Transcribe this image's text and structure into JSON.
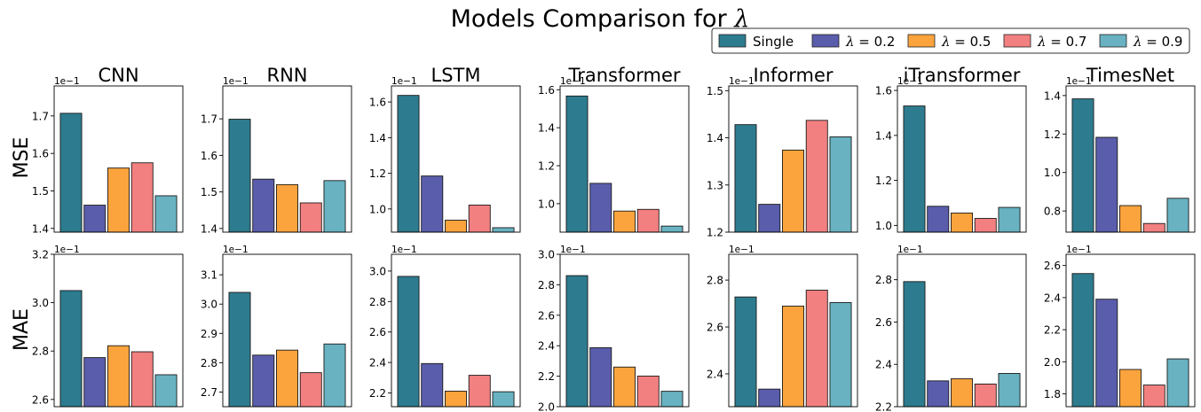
{
  "title_prefix": "Models Comparison for ",
  "title_symbol": "λ",
  "row_labels": [
    "MSE",
    "MAE"
  ],
  "exponent_label": "1e−1",
  "chart_data": {
    "type": "bar",
    "title": "Models Comparison for λ",
    "legend": {
      "placement": "top-right",
      "entries": [
        {
          "label": "Single",
          "color": "#2d7b8e"
        },
        {
          "symbol": "λ",
          "rest": " = 0.2",
          "color": "#5a5dab"
        },
        {
          "symbol": "λ",
          "rest": " = 0.5",
          "color": "#fba43d"
        },
        {
          "symbol": "λ",
          "rest": " = 0.7",
          "color": "#f28080"
        },
        {
          "symbol": "λ",
          "rest": " = 0.9",
          "color": "#68b2c1"
        }
      ]
    },
    "series_names": [
      "Single",
      "λ = 0.2",
      "λ = 0.5",
      "λ = 0.7",
      "λ = 0.9"
    ],
    "panels": [
      {
        "model": "CNN",
        "metric": "MSE",
        "ylim": [
          1.39,
          1.78
        ],
        "ticks": [
          1.4,
          1.5,
          1.6,
          1.7
        ],
        "tick_labels": [
          "1.4",
          "1.5",
          "1.6",
          "1.7"
        ],
        "values": [
          1.707,
          1.462,
          1.561,
          1.575,
          1.487
        ]
      },
      {
        "model": "RNN",
        "metric": "MSE",
        "ylim": [
          1.39,
          1.79
        ],
        "ticks": [
          1.4,
          1.5,
          1.6,
          1.7
        ],
        "tick_labels": [
          "1.4",
          "1.5",
          "1.6",
          "1.7"
        ],
        "values": [
          1.699,
          1.535,
          1.52,
          1.47,
          1.531
        ]
      },
      {
        "model": "LSTM",
        "metric": "MSE",
        "ylim": [
          0.87,
          1.69
        ],
        "ticks": [
          1.0,
          1.2,
          1.4,
          1.6
        ],
        "tick_labels": [
          "1.0",
          "1.2",
          "1.4",
          "1.6"
        ],
        "values": [
          1.637,
          1.185,
          0.937,
          1.022,
          0.895
        ]
      },
      {
        "model": "Transformer",
        "metric": "MSE",
        "ylim": [
          0.85,
          1.62
        ],
        "ticks": [
          1.0,
          1.2,
          1.4,
          1.6
        ],
        "tick_labels": [
          "1.0",
          "1.2",
          "1.4",
          "1.6"
        ],
        "values": [
          1.567,
          1.107,
          0.961,
          0.97,
          0.882
        ]
      },
      {
        "model": "Informer",
        "metric": "MSE",
        "ylim": [
          1.2,
          1.51
        ],
        "ticks": [
          1.2,
          1.3,
          1.4,
          1.5
        ],
        "tick_labels": [
          "1.2",
          "1.3",
          "1.4",
          "1.5"
        ],
        "values": [
          1.428,
          1.259,
          1.374,
          1.437,
          1.402
        ]
      },
      {
        "model": "iTransformer",
        "metric": "MSE",
        "ylim": [
          0.97,
          1.62
        ],
        "ticks": [
          1.0,
          1.2,
          1.4,
          1.6
        ],
        "tick_labels": [
          "1.0",
          "1.2",
          "1.4",
          "1.6"
        ],
        "values": [
          1.531,
          1.085,
          1.055,
          1.031,
          1.08
        ]
      },
      {
        "model": "TimesNet",
        "metric": "MSE",
        "ylim": [
          0.69,
          1.45
        ],
        "ticks": [
          0.8,
          1.0,
          1.2,
          1.4
        ],
        "tick_labels": [
          "0.8",
          "1.0",
          "1.2",
          "1.4"
        ],
        "values": [
          1.383,
          1.183,
          0.828,
          0.735,
          0.866
        ]
      },
      {
        "model": "CNN",
        "metric": "MAE",
        "ylim": [
          2.57,
          3.2
        ],
        "ticks": [
          2.6,
          2.8,
          3.0,
          3.2
        ],
        "tick_labels": [
          "2.6",
          "2.8",
          "3.0",
          "3.2"
        ],
        "values": [
          3.05,
          2.773,
          2.822,
          2.797,
          2.702
        ]
      },
      {
        "model": "RNN",
        "metric": "MAE",
        "ylim": [
          2.65,
          3.17
        ],
        "ticks": [
          2.7,
          2.8,
          2.9,
          3.0,
          3.1
        ],
        "tick_labels": [
          "2.7",
          "2.8",
          "2.9",
          "3.0",
          "3.1"
        ],
        "values": [
          3.04,
          2.826,
          2.843,
          2.766,
          2.864
        ]
      },
      {
        "model": "LSTM",
        "metric": "MAE",
        "ylim": [
          2.11,
          3.11
        ],
        "ticks": [
          2.2,
          2.4,
          2.6,
          2.8,
          3.0
        ],
        "tick_labels": [
          "2.2",
          "2.4",
          "2.6",
          "2.8",
          "3.0"
        ],
        "values": [
          2.965,
          2.393,
          2.212,
          2.316,
          2.208
        ]
      },
      {
        "model": "Transformer",
        "metric": "MAE",
        "ylim": [
          2.0,
          3.0
        ],
        "ticks": [
          2.0,
          2.2,
          2.4,
          2.6,
          2.8,
          3.0
        ],
        "tick_labels": [
          "2.0",
          "2.2",
          "2.4",
          "2.6",
          "2.8",
          "3.0"
        ],
        "values": [
          2.86,
          2.387,
          2.26,
          2.201,
          2.101
        ]
      },
      {
        "model": "Informer",
        "metric": "MAE",
        "ylim": [
          2.26,
          2.91
        ],
        "ticks": [
          2.4,
          2.6,
          2.8
        ],
        "tick_labels": [
          "2.4",
          "2.6",
          "2.8"
        ],
        "values": [
          2.728,
          2.335,
          2.689,
          2.757,
          2.704
        ]
      },
      {
        "model": "iTransformer",
        "metric": "MAE",
        "ylim": [
          2.2,
          2.92
        ],
        "ticks": [
          2.2,
          2.4,
          2.6,
          2.8
        ],
        "tick_labels": [
          "2.2",
          "2.4",
          "2.6",
          "2.8"
        ],
        "values": [
          2.791,
          2.322,
          2.332,
          2.307,
          2.357
        ]
      },
      {
        "model": "TimesNet",
        "metric": "MAE",
        "ylim": [
          1.72,
          2.67
        ],
        "ticks": [
          1.8,
          2.0,
          2.2,
          2.4,
          2.6
        ],
        "tick_labels": [
          "1.8",
          "2.0",
          "2.2",
          "2.4",
          "2.6"
        ],
        "values": [
          2.55,
          2.39,
          1.952,
          1.855,
          2.018
        ]
      }
    ]
  }
}
